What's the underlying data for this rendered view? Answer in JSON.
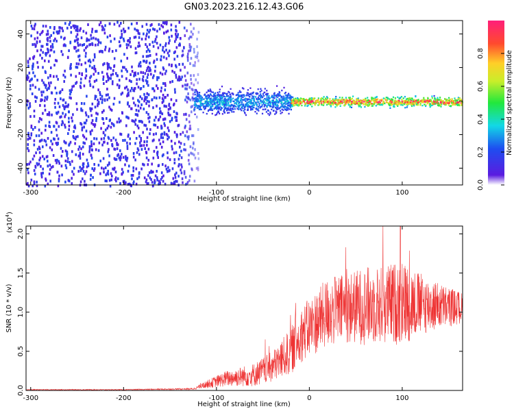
{
  "title": "GN03.2023.216.12.43.G06",
  "colors": {
    "snr_line": "#ee3333",
    "spectrogram_points": "#6a1ff0",
    "axis": "#000000",
    "background": "#ffffff"
  },
  "chart_data": [
    {
      "type": "heatmap",
      "name": "spectrogram",
      "xlabel": "Height of straight line (km)",
      "ylabel": "Frequency (Hz)",
      "xlim": [
        -305,
        165
      ],
      "ylim": [
        -50,
        48
      ],
      "xticks": [
        -300,
        -200,
        -100,
        0,
        100
      ],
      "yticks": [
        -40,
        -20,
        0,
        20,
        40
      ],
      "xtick_labels": [
        "-300",
        "-200",
        "-100",
        "0",
        "100"
      ],
      "ytick_labels": [
        "-40",
        "-20",
        "0",
        "20",
        "40"
      ],
      "colorbar": {
        "label": "Normalized spectral amplitude",
        "range": [
          0.0,
          1.0
        ],
        "ticks": [
          0.0,
          0.2,
          0.4,
          0.6,
          0.8
        ],
        "tick_labels": [
          "0.0",
          "0.2",
          "0.4",
          "0.6",
          "0.8"
        ],
        "colormap": "rainbow (violet-blue-cyan-green-yellow-orange-red-magenta)"
      },
      "regions": [
        {
          "x_range": [
            -305,
            -120
          ],
          "freq_range": [
            -50,
            48
          ],
          "description": "broadband noise",
          "amplitude": 0.15
        },
        {
          "x_range": [
            -125,
            -20
          ],
          "freq_center": 0,
          "freq_halfwidth": 10,
          "description": "signal emerging",
          "amplitude": 0.35
        },
        {
          "x_range": [
            -20,
            165
          ],
          "freq_center": 0,
          "freq_halfwidth": 4,
          "description": "strong carrier tone",
          "amplitude": 0.95
        }
      ],
      "grid": false
    },
    {
      "type": "line",
      "name": "snr",
      "xlabel": "Height of straight line (km)",
      "ylabel": "SNR (10 * v/v)",
      "y_multiplier_label": "(x10",
      "y_multiplier_exp": "4",
      "y_multiplier_close": ")",
      "xlim": [
        -305,
        165
      ],
      "ylim": [
        0,
        2.1
      ],
      "xticks": [
        -300,
        -200,
        -100,
        0,
        100
      ],
      "yticks": [
        0.0,
        0.5,
        1.0,
        1.5,
        2.0
      ],
      "xtick_labels": [
        "-300",
        "-200",
        "-100",
        "0",
        "100"
      ],
      "ytick_labels": [
        "0.0",
        "0.5",
        "1.0",
        "1.5",
        "2.0"
      ],
      "envelope": {
        "x": [
          -305,
          -200,
          -125,
          -110,
          -90,
          -60,
          -40,
          -20,
          -10,
          20,
          40,
          60,
          80,
          100,
          120,
          140,
          165
        ],
        "mean": [
          0.01,
          0.01,
          0.02,
          0.08,
          0.15,
          0.2,
          0.3,
          0.5,
          0.7,
          1.0,
          1.05,
          1.08,
          1.1,
          1.12,
          1.1,
          1.08,
          1.05
        ],
        "spread": [
          0.005,
          0.005,
          0.01,
          0.05,
          0.1,
          0.15,
          0.2,
          0.3,
          0.35,
          0.45,
          0.45,
          0.5,
          0.5,
          0.55,
          0.4,
          0.3,
          0.2
        ],
        "peak": {
          "x": 98,
          "value": 2.1
        }
      },
      "grid": false
    }
  ]
}
